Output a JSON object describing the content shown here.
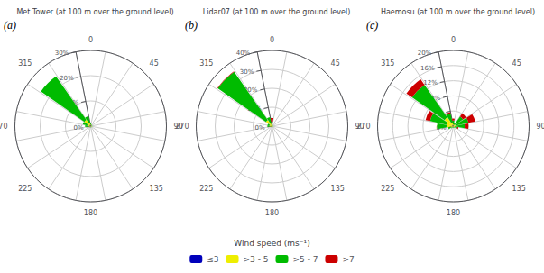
{
  "chart_data": [
    {
      "type": "bar",
      "title": "Met Tower (at 100 m over the ground level)",
      "annotations": [
        "(a)"
      ],
      "x": [
        0,
        22.5,
        45,
        67.5,
        90,
        112.5,
        135,
        157.5,
        180,
        202.5,
        225,
        247.5,
        270,
        292.5,
        315,
        337.5
      ],
      "xticks": [
        0,
        45,
        90,
        135,
        180,
        225,
        270,
        315
      ],
      "ylim": [
        0,
        30
      ],
      "yticks": [
        {
          "value": 0,
          "label": "0%"
        },
        {
          "value": 10,
          "label": "10%"
        },
        {
          "value": 20,
          "label": "20%"
        },
        {
          "value": 30,
          "label": "30%"
        }
      ],
      "stacked": true,
      "grid": true,
      "series": [
        {
          "name": "≤3",
          "color": "#0000BB",
          "values": [
            0.3,
            0.2,
            0.1,
            0.2,
            0.2,
            0.2,
            0.2,
            0.1,
            0.2,
            0.2,
            0.2,
            0.3,
            0.4,
            0.4,
            0.5,
            0.5
          ]
        },
        {
          "name": ">3 - 5",
          "color": "#EEEE00",
          "values": [
            0.4,
            0.2,
            0.2,
            0.2,
            0.3,
            0.2,
            0.2,
            0.1,
            0.2,
            0.2,
            0.3,
            0.4,
            0.8,
            1.0,
            2.5,
            1.0
          ]
        },
        {
          "name": ">5 - 7",
          "color": "#00BB00",
          "values": [
            0.5,
            0.3,
            0.2,
            0.1,
            0.2,
            0.1,
            0.1,
            0.0,
            0.1,
            0.1,
            0.1,
            0.2,
            1.0,
            1.8,
            21.0,
            2.5
          ]
        },
        {
          "name": ">7",
          "color": "#CC0000",
          "values": [
            0.0,
            0.0,
            0.0,
            0.0,
            0.0,
            0.0,
            0.0,
            0.0,
            0.0,
            0.0,
            0.0,
            0.0,
            0.0,
            0.0,
            0.0,
            0.0
          ]
        }
      ]
    },
    {
      "type": "bar",
      "title": "Lidar07 (at 100 m over the ground level)",
      "annotations": [
        "(b)"
      ],
      "x": [
        0,
        22.5,
        45,
        67.5,
        90,
        112.5,
        135,
        157.5,
        180,
        202.5,
        225,
        247.5,
        270,
        292.5,
        315,
        337.5
      ],
      "xticks": [
        0,
        45,
        90,
        135,
        180,
        225,
        270,
        315
      ],
      "ylim": [
        0,
        40
      ],
      "yticks": [
        {
          "value": 0,
          "label": "0%"
        },
        {
          "value": 10,
          "label": "10%"
        },
        {
          "value": 20,
          "label": "20%"
        },
        {
          "value": 30,
          "label": "30%"
        },
        {
          "value": 40,
          "label": "40%"
        }
      ],
      "stacked": true,
      "grid": true,
      "legend": "bottom",
      "legend_title": "Wind speed (ms⁻¹)",
      "series": [
        {
          "name": "≤3",
          "color": "#0000BB",
          "values": [
            0.3,
            0.2,
            0.1,
            0.2,
            0.2,
            0.2,
            0.2,
            0.1,
            0.2,
            0.2,
            0.2,
            0.3,
            0.4,
            0.4,
            0.4,
            0.4
          ]
        },
        {
          "name": ">3 - 5",
          "color": "#EEEE00",
          "values": [
            0.5,
            0.2,
            0.2,
            0.2,
            0.4,
            0.2,
            0.2,
            0.1,
            0.2,
            0.2,
            0.3,
            0.4,
            1.0,
            0.8,
            3.5,
            1.0
          ]
        },
        {
          "name": ">5 - 7",
          "color": "#00BB00",
          "values": [
            1.5,
            0.3,
            0.2,
            0.1,
            0.2,
            0.1,
            0.1,
            0.0,
            0.1,
            0.1,
            0.1,
            0.2,
            1.0,
            1.2,
            31.0,
            3.5
          ]
        },
        {
          "name": ">7",
          "color": "#CC0000",
          "values": [
            2.0,
            0.0,
            0.0,
            0.0,
            0.0,
            0.0,
            0.0,
            0.0,
            0.0,
            0.0,
            0.0,
            0.0,
            0.0,
            0.0,
            0.3,
            0.0
          ]
        }
      ]
    },
    {
      "type": "bar",
      "title": "Haemosu (at 100 m over the ground level)",
      "annotations": [
        "(c)"
      ],
      "x": [
        0,
        22.5,
        45,
        67.5,
        90,
        112.5,
        135,
        157.5,
        180,
        202.5,
        225,
        247.5,
        270,
        292.5,
        315,
        337.5
      ],
      "xticks": [
        0,
        45,
        90,
        135,
        180,
        225,
        270,
        315
      ],
      "ylim": [
        0,
        20
      ],
      "yticks": [
        {
          "value": 0,
          "label": "0%"
        },
        {
          "value": 4,
          "label": "4%"
        },
        {
          "value": 8,
          "label": "8%"
        },
        {
          "value": 12,
          "label": "12%"
        },
        {
          "value": 16,
          "label": "16%"
        },
        {
          "value": 20,
          "label": "20%"
        }
      ],
      "stacked": true,
      "grid": true,
      "series": [
        {
          "name": "≤3",
          "color": "#0000BB",
          "values": [
            0.2,
            0.1,
            0.1,
            0.1,
            0.2,
            0.1,
            0.1,
            0.1,
            0.1,
            0.1,
            0.1,
            0.2,
            0.3,
            0.3,
            0.3,
            0.2
          ]
        },
        {
          "name": ">3 - 5",
          "color": "#EEEE00",
          "values": [
            0.3,
            0.2,
            0.5,
            0.5,
            0.6,
            0.3,
            0.2,
            0.1,
            0.2,
            0.2,
            0.3,
            0.5,
            1.5,
            1.5,
            2.5,
            0.8
          ]
        },
        {
          "name": ">5 - 7",
          "color": "#00BB00",
          "values": [
            1.0,
            0.5,
            2.5,
            3.5,
            2.2,
            0.7,
            0.3,
            0.1,
            0.2,
            0.1,
            0.3,
            0.7,
            2.5,
            4.5,
            10.5,
            2.5
          ]
        },
        {
          "name": ">7",
          "color": "#CC0000",
          "values": [
            0.5,
            0.0,
            1.0,
            1.8,
            1.0,
            0.3,
            0.0,
            0.0,
            0.0,
            0.0,
            0.0,
            0.0,
            0.0,
            1.2,
            1.8,
            0.3
          ]
        }
      ]
    }
  ]
}
